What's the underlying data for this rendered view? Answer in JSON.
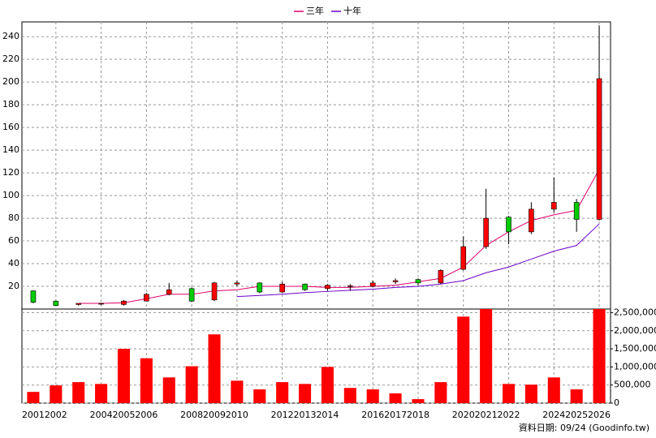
{
  "chart_data": {
    "type": "candlestick",
    "categories": [
      "2001",
      "2002",
      null,
      "2004",
      "2005",
      "2006",
      null,
      "2008",
      "2009",
      "2010",
      null,
      "2012",
      "2013",
      "2014",
      null,
      "2016",
      "2017",
      "2018",
      null,
      "2020",
      "2021",
      "2022",
      null,
      "2024",
      "2025",
      "2026"
    ],
    "open": [
      16,
      7,
      4,
      4.5,
      4,
      7,
      13,
      18,
      8,
      22,
      23,
      15,
      22,
      18,
      20,
      20,
      24,
      26,
      23,
      35,
      55,
      81,
      68,
      88,
      94,
      79
    ],
    "high": [
      16.5,
      7.5,
      5,
      5.5,
      8,
      14,
      23,
      19,
      24,
      25,
      23.5,
      24,
      22.5,
      22,
      22,
      25,
      27,
      27,
      35,
      64,
      106,
      82,
      94,
      116,
      97,
      250
    ],
    "low": [
      5,
      3,
      3,
      3.5,
      3,
      7,
      12,
      6,
      7,
      20,
      14,
      14,
      16,
      16,
      16,
      19,
      22,
      21,
      22,
      34,
      53,
      57,
      66,
      85,
      68,
      78
    ],
    "close": [
      6,
      3,
      5,
      5,
      7,
      13,
      17,
      7,
      23,
      23,
      15,
      22,
      17,
      21,
      20.5,
      23,
      25,
      23,
      34,
      55,
      80,
      68,
      88,
      94,
      79,
      203
    ],
    "up_color": "#ff0000",
    "down_color": "#00cc00",
    "series": [
      {
        "name": "三年",
        "color": "#e0006a",
        "values": [
          null,
          null,
          5,
          5,
          5.5,
          9,
          13,
          13,
          16,
          17,
          20,
          20,
          20,
          19,
          19,
          20,
          21,
          24,
          27,
          37,
          56,
          68,
          78,
          83,
          87,
          123
        ]
      },
      {
        "name": "十年",
        "color": "#6a00cc",
        "values": [
          null,
          null,
          null,
          null,
          null,
          null,
          null,
          null,
          null,
          11,
          12,
          13,
          14.5,
          15.5,
          16.5,
          17.5,
          19,
          20,
          22,
          25,
          32,
          37,
          44,
          51,
          56,
          75
        ]
      }
    ],
    "ylim": [
      0,
      253
    ],
    "yticks": [
      20,
      40,
      60,
      80,
      100,
      120,
      140,
      160,
      180,
      200,
      220,
      240
    ],
    "grid": true,
    "volume": {
      "color": "#ff0000",
      "values": [
        310000,
        490000,
        580000,
        530000,
        1500000,
        1240000,
        710000,
        1020000,
        1900000,
        620000,
        380000,
        580000,
        530000,
        1000000,
        420000,
        380000,
        270000,
        110000,
        580000,
        2390000,
        2600000,
        530000,
        510000,
        710000,
        380000,
        2600000
      ],
      "ylim": [
        0,
        2600000
      ],
      "yticks": [
        0,
        {
          "value": 500000,
          "label": "500,000"
        },
        {
          "value": 1000000,
          "label": "1,000,000"
        },
        {
          "value": 1500000,
          "label": "1,500,000"
        },
        {
          "value": 2000000,
          "label": "2,000,000"
        },
        {
          "value": 2500000,
          "label": "2,500,000"
        }
      ]
    },
    "footnote": "資料日期: 09/24  (Goodinfo.tw)"
  }
}
